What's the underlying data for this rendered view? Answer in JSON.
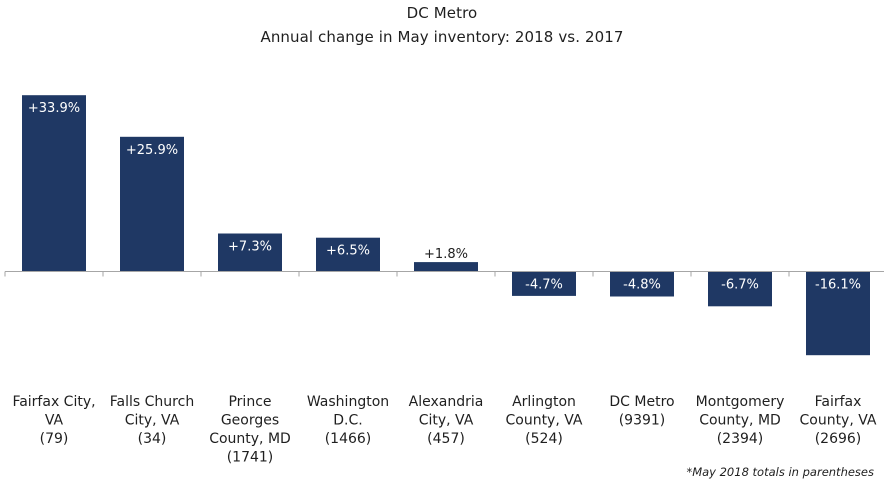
{
  "chart_data": {
    "type": "bar",
    "title": "DC Metro",
    "subtitle": "Annual change in May inventory:  2018 vs. 2017",
    "categories": [
      [
        "Fairfax City,",
        "VA",
        "(79)"
      ],
      [
        "Falls Church",
        "City, VA",
        "(34)"
      ],
      [
        "Prince",
        "Georges",
        "County, MD",
        "(1741)"
      ],
      [
        "Washington",
        "D.C.",
        "(1466)"
      ],
      [
        "Alexandria",
        "City, VA",
        "(457)"
      ],
      [
        "Arlington",
        "County, VA",
        "(524)"
      ],
      [
        "DC Metro",
        "(9391)"
      ],
      [
        "Montgomery",
        "County, MD",
        "(2394)"
      ],
      [
        "Fairfax",
        "County, VA",
        "(2696)"
      ]
    ],
    "values": [
      33.9,
      25.9,
      7.3,
      6.5,
      1.8,
      -4.7,
      -4.8,
      -6.7,
      -16.1
    ],
    "data_labels": [
      "+33.9%",
      "+25.9%",
      "+7.3%",
      "+6.5%",
      "+1.8%",
      "-4.7%",
      "-4.8%",
      "-6.7%",
      "-16.1%"
    ],
    "ylim": [
      -16.1,
      33.9
    ],
    "grid": false,
    "legend": "none",
    "colors": {
      "bar": "#1f3864",
      "axis": "#a6a6a6",
      "label_inside": "#ffffff",
      "label_outside": "#1f1f1f"
    },
    "footnote": "*May 2018 totals in parentheses"
  }
}
